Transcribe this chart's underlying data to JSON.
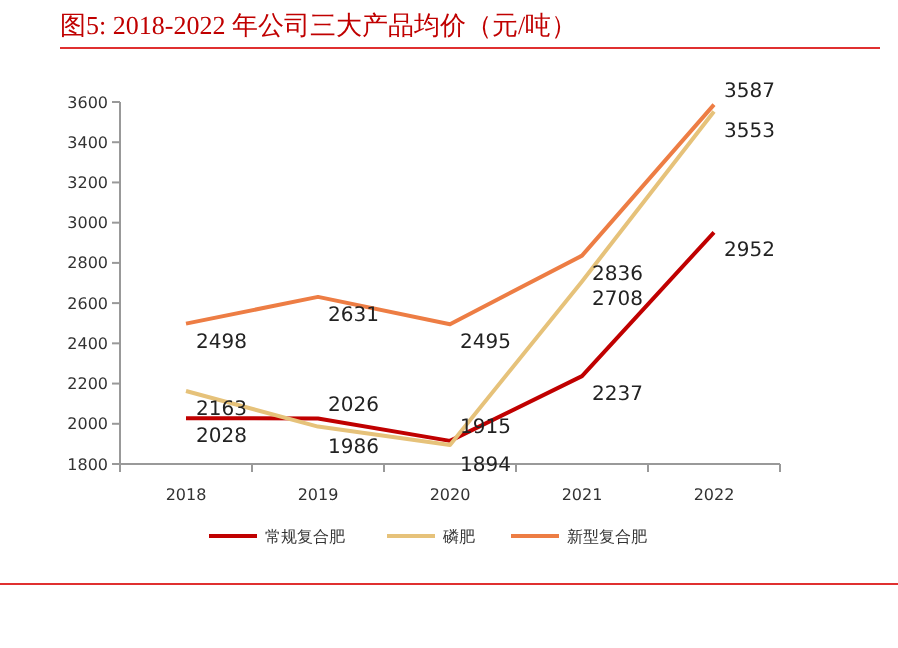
{
  "chart_data": {
    "type": "line",
    "title": "图5:  2018-2022 年公司三大产品均价（元/吨）",
    "categories": [
      "2018",
      "2019",
      "2020",
      "2021",
      "2022"
    ],
    "series": [
      {
        "name": "常规复合肥",
        "color": "#c00000",
        "values": [
          2028,
          2026,
          1915,
          2237,
          2952
        ]
      },
      {
        "name": "磷肥",
        "color": "#e6c27a",
        "values": [
          2163,
          1986,
          1894,
          2708,
          3553
        ]
      },
      {
        "name": "新型复合肥",
        "color": "#ed7d44",
        "values": [
          2498,
          2631,
          2495,
          2836,
          3587
        ]
      }
    ],
    "ylim": [
      1800,
      3600
    ],
    "yticks": [
      1800,
      2000,
      2200,
      2400,
      2600,
      2800,
      3000,
      3200,
      3400,
      3600
    ],
    "grid": false,
    "legend": "bottom",
    "marker": "none",
    "line_style": "solid",
    "data_labels": true
  }
}
